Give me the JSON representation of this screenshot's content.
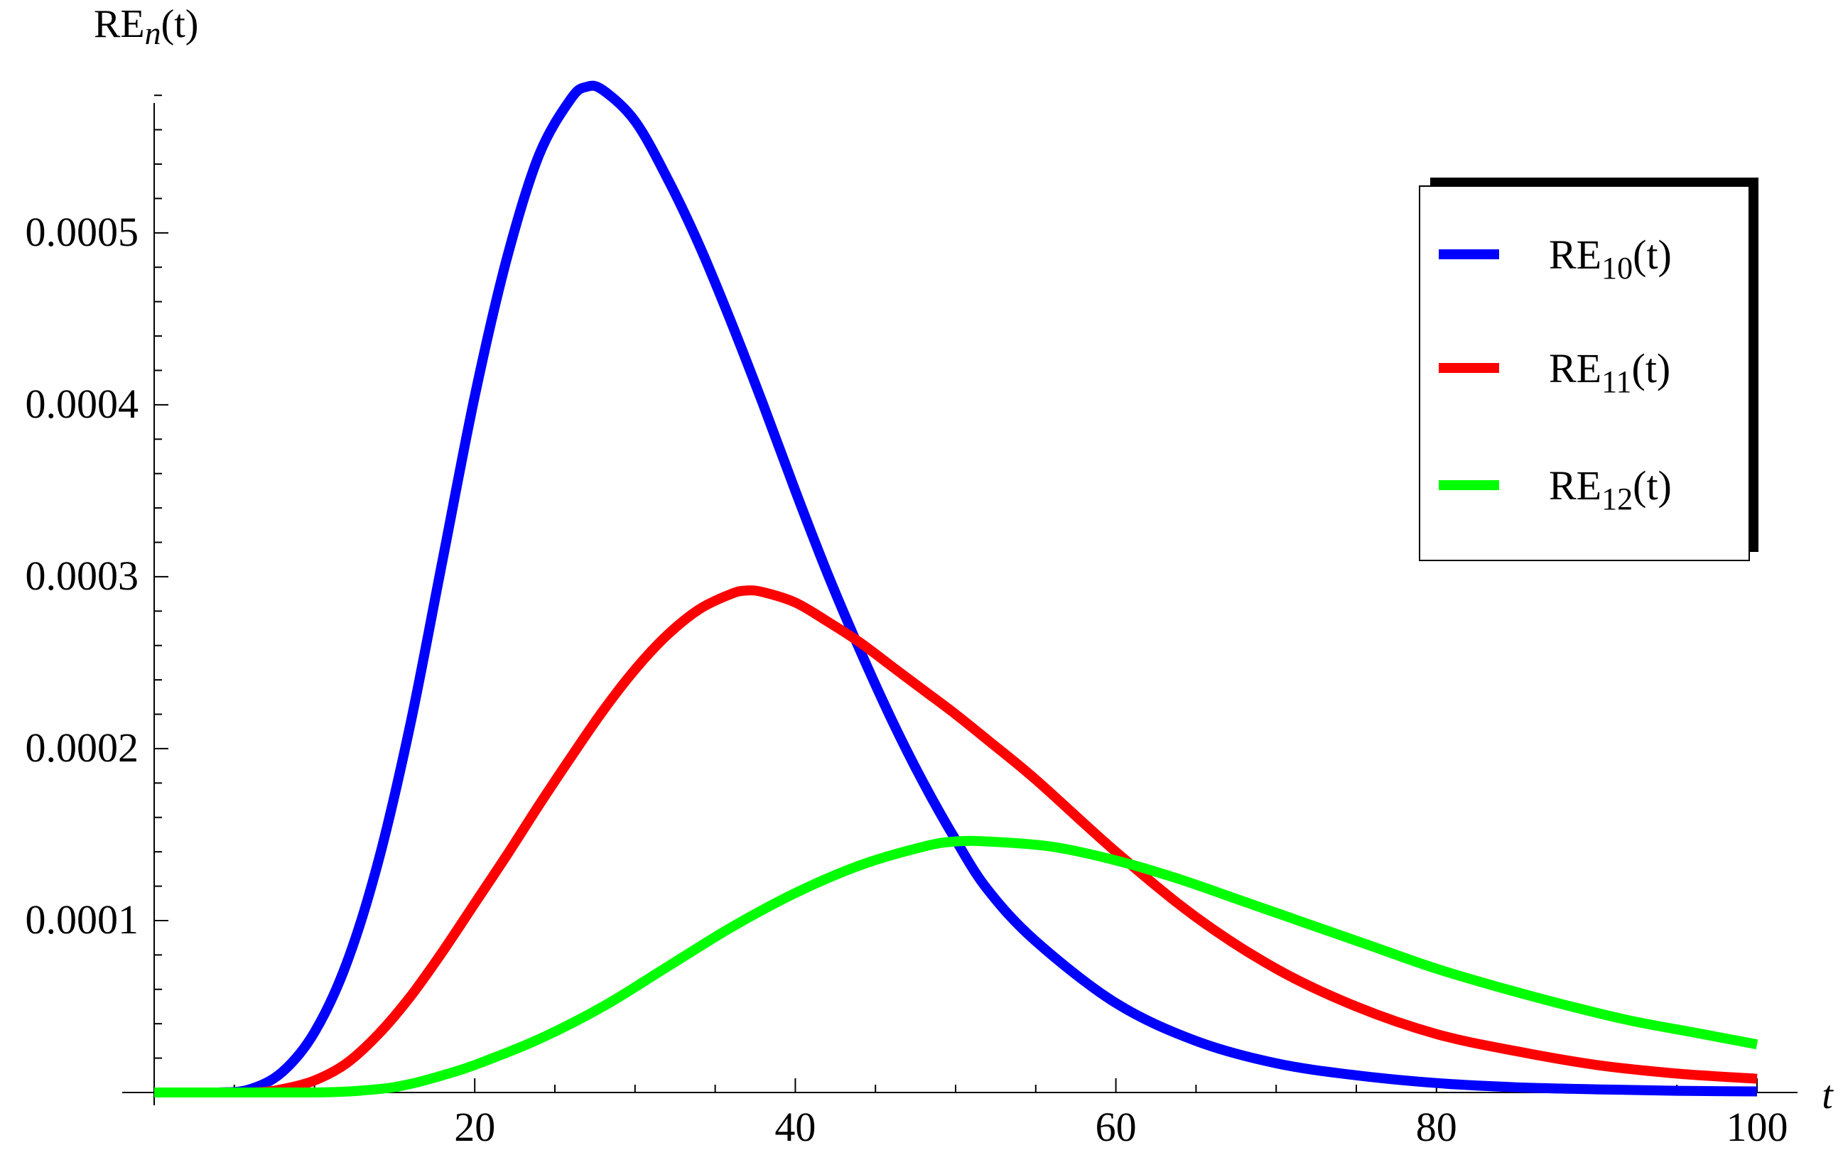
{
  "chart_data": {
    "type": "line",
    "title": "",
    "xlabel": "t",
    "ylabel": "RE",
    "ylabel_sub": "n",
    "ylabel_suffix": "(t)",
    "xlim": [
      0,
      100
    ],
    "ylim": [
      0,
      0.00059
    ],
    "x_ticks": [
      20,
      40,
      60,
      80,
      100
    ],
    "x_tick_labels": [
      "20",
      "40",
      "60",
      "80",
      "100"
    ],
    "y_ticks": [
      0.0001,
      0.0002,
      0.0003,
      0.0004,
      0.0005
    ],
    "y_tick_labels": [
      "0.0001",
      "0.0002",
      "0.0003",
      "0.0004",
      "0.0005"
    ],
    "legend_position": "top-right",
    "series": [
      {
        "name": "RE10(t)",
        "label_main": "RE",
        "label_sub": "10",
        "label_suffix": "(t)",
        "color": "#0000ff",
        "x": [
          0,
          4,
          6,
          8,
          10,
          12,
          14,
          16,
          18,
          20,
          22,
          24,
          26,
          27,
          28,
          30,
          32,
          34,
          36,
          38,
          40,
          42,
          44,
          46,
          48,
          50,
          52,
          55,
          60,
          65,
          70,
          75,
          80,
          85,
          90,
          95,
          100
        ],
        "y": [
          0.0,
          0.0,
          2e-06,
          1.2e-05,
          3.5e-05,
          7.5e-05,
          0.000135,
          0.000215,
          0.00031,
          0.000405,
          0.000485,
          0.000545,
          0.000578,
          0.000585,
          0.000583,
          0.000565,
          0.000532,
          0.000493,
          0.000448,
          0.0004,
          0.00035,
          0.000302,
          0.000258,
          0.000217,
          0.00018,
          0.000147,
          0.000118,
          8.8e-05,
          5.2e-05,
          3e-05,
          1.7e-05,
          1e-05,
          5.5e-06,
          3e-06,
          1.8e-06,
          1e-06,
          6e-07
        ]
      },
      {
        "name": "RE11(t)",
        "label_main": "RE",
        "label_sub": "11",
        "label_suffix": "(t)",
        "color": "#ff0000",
        "x": [
          0,
          6,
          8,
          10,
          12,
          14,
          16,
          18,
          20,
          22,
          24,
          26,
          28,
          30,
          32,
          34,
          36,
          37,
          38,
          40,
          42,
          44,
          46,
          48,
          50,
          52,
          55,
          60,
          65,
          70,
          75,
          80,
          85,
          90,
          95,
          100
        ],
        "y": [
          0.0,
          0.0,
          2e-06,
          7e-06,
          1.7e-05,
          3.4e-05,
          5.6e-05,
          8.2e-05,
          0.00011,
          0.000138,
          0.000167,
          0.000195,
          0.000222,
          0.000246,
          0.000266,
          0.000281,
          0.00029,
          0.000292,
          0.000291,
          0.000285,
          0.000274,
          0.000262,
          0.000248,
          0.000234,
          0.00022,
          0.000205,
          0.000182,
          0.00014,
          0.000102,
          7.2e-05,
          5e-05,
          3.4e-05,
          2.4e-05,
          1.6e-05,
          1.1e-05,
          8e-06
        ]
      },
      {
        "name": "RE12(t)",
        "label_main": "RE",
        "label_sub": "12",
        "label_suffix": "(t)",
        "color": "#00ff00",
        "x": [
          0,
          10,
          14,
          16,
          18,
          20,
          24,
          28,
          32,
          36,
          40,
          44,
          48,
          50,
          52,
          56,
          60,
          64,
          68,
          72,
          76,
          80,
          84,
          88,
          92,
          96,
          100
        ],
        "y": [
          0.0,
          0.0,
          2e-06,
          5e-06,
          1e-05,
          1.6e-05,
          3.1e-05,
          5e-05,
          7.3e-05,
          9.6e-05,
          0.000116,
          0.000132,
          0.000143,
          0.000146,
          0.000146,
          0.000143,
          0.000135,
          0.000124,
          0.000111,
          9.8e-05,
          8.5e-05,
          7.2e-05,
          6.1e-05,
          5.1e-05,
          4.2e-05,
          3.5e-05,
          2.8e-05
        ]
      }
    ]
  }
}
